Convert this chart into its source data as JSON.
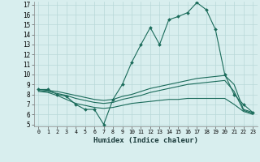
{
  "xlabel": "Humidex (Indice chaleur)",
  "x_labels": [
    "0",
    "1",
    "2",
    "3",
    "4",
    "5",
    "6",
    "7",
    "8",
    "9",
    "10",
    "11",
    "12",
    "13",
    "14",
    "15",
    "16",
    "17",
    "18",
    "19",
    "20",
    "21",
    "22",
    "23"
  ],
  "ylim": [
    5,
    17
  ],
  "xlim": [
    0,
    23
  ],
  "yticks": [
    5,
    6,
    7,
    8,
    9,
    10,
    11,
    12,
    13,
    14,
    15,
    16,
    17
  ],
  "bg_color": "#d8eeee",
  "grid_color": "#b8d8d8",
  "line_color": "#1a6b5a",
  "series1": [
    8.5,
    8.5,
    8.0,
    7.8,
    7.0,
    6.5,
    6.5,
    5.0,
    7.5,
    9.0,
    11.2,
    13.0,
    14.7,
    13.0,
    15.5,
    15.8,
    16.2,
    17.2,
    16.5,
    14.5,
    10.0,
    8.0,
    7.0,
    6.2
  ],
  "series2": [
    8.5,
    8.4,
    8.3,
    8.1,
    7.9,
    7.7,
    7.5,
    7.4,
    7.5,
    7.8,
    8.0,
    8.3,
    8.6,
    8.8,
    9.0,
    9.2,
    9.4,
    9.6,
    9.7,
    9.8,
    9.9,
    9.0,
    6.5,
    6.2
  ],
  "series3": [
    8.4,
    8.3,
    8.1,
    7.9,
    7.6,
    7.4,
    7.2,
    7.1,
    7.2,
    7.5,
    7.7,
    7.9,
    8.2,
    8.4,
    8.6,
    8.8,
    9.0,
    9.1,
    9.2,
    9.3,
    9.4,
    8.3,
    6.4,
    6.1
  ],
  "series4": [
    8.3,
    8.2,
    7.9,
    7.5,
    7.1,
    6.9,
    6.7,
    6.6,
    6.7,
    6.9,
    7.1,
    7.2,
    7.3,
    7.4,
    7.5,
    7.5,
    7.6,
    7.6,
    7.6,
    7.6,
    7.6,
    7.0,
    6.3,
    6.0
  ]
}
